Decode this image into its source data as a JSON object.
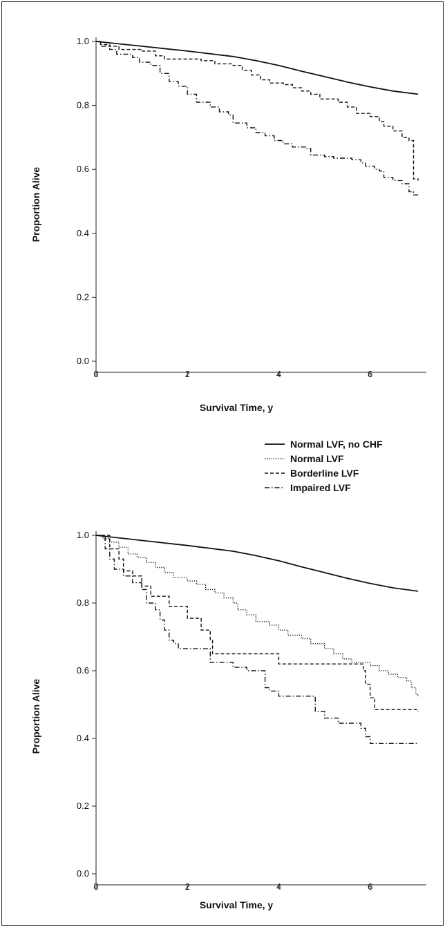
{
  "chart_data": [
    {
      "type": "line",
      "title": "",
      "xlabel": "Survival Time, y",
      "ylabel": "Proportion Alive",
      "xlim": [
        0,
        7.2
      ],
      "ylim": [
        0,
        1.0
      ],
      "x_ticks": [
        "0",
        "2",
        "4",
        "6"
      ],
      "y_ticks": [
        "0.0",
        "0.2",
        "0.4",
        "0.6",
        "0.8",
        "1.0"
      ],
      "grid": false,
      "series": [
        {
          "key": "normal-no-chf",
          "style": "solid",
          "step": false,
          "points": [
            [
              0,
              1.0
            ],
            [
              1,
              0.985
            ],
            [
              2,
              0.97
            ],
            [
              3,
              0.953
            ],
            [
              3.5,
              0.94
            ],
            [
              4,
              0.925
            ],
            [
              4.5,
              0.907
            ],
            [
              5,
              0.89
            ],
            [
              5.5,
              0.873
            ],
            [
              6,
              0.858
            ],
            [
              6.5,
              0.845
            ],
            [
              7.05,
              0.835
            ]
          ]
        },
        {
          "key": "borderline",
          "style": "dashed",
          "step": true,
          "points": [
            [
              0,
              1.0
            ],
            [
              0.1,
              0.99
            ],
            [
              0.3,
              0.985
            ],
            [
              0.5,
              0.975
            ],
            [
              1.0,
              0.97
            ],
            [
              1.3,
              0.955
            ],
            [
              1.5,
              0.945
            ],
            [
              2.3,
              0.94
            ],
            [
              2.6,
              0.93
            ],
            [
              3.0,
              0.925
            ],
            [
              3.2,
              0.91
            ],
            [
              3.4,
              0.895
            ],
            [
              3.6,
              0.88
            ],
            [
              3.8,
              0.87
            ],
            [
              4.1,
              0.865
            ],
            [
              4.3,
              0.855
            ],
            [
              4.5,
              0.845
            ],
            [
              4.7,
              0.835
            ],
            [
              4.9,
              0.82
            ],
            [
              5.3,
              0.81
            ],
            [
              5.5,
              0.795
            ],
            [
              5.7,
              0.775
            ],
            [
              6.0,
              0.765
            ],
            [
              6.2,
              0.75
            ],
            [
              6.3,
              0.735
            ],
            [
              6.5,
              0.72
            ],
            [
              6.7,
              0.7
            ],
            [
              6.85,
              0.69
            ],
            [
              6.95,
              0.57
            ],
            [
              7.05,
              0.565
            ]
          ]
        },
        {
          "key": "impaired",
          "style": "dashdot",
          "step": true,
          "points": [
            [
              0,
              1.0
            ],
            [
              0.1,
              0.985
            ],
            [
              0.3,
              0.975
            ],
            [
              0.45,
              0.96
            ],
            [
              0.8,
              0.95
            ],
            [
              0.95,
              0.935
            ],
            [
              1.2,
              0.925
            ],
            [
              1.4,
              0.9
            ],
            [
              1.6,
              0.875
            ],
            [
              1.8,
              0.86
            ],
            [
              2.0,
              0.835
            ],
            [
              2.2,
              0.81
            ],
            [
              2.5,
              0.795
            ],
            [
              2.7,
              0.78
            ],
            [
              2.9,
              0.77
            ],
            [
              3.0,
              0.745
            ],
            [
              3.3,
              0.73
            ],
            [
              3.5,
              0.715
            ],
            [
              3.7,
              0.705
            ],
            [
              3.9,
              0.69
            ],
            [
              4.1,
              0.68
            ],
            [
              4.3,
              0.67
            ],
            [
              4.6,
              0.665
            ],
            [
              4.7,
              0.645
            ],
            [
              5.0,
              0.64
            ],
            [
              5.2,
              0.635
            ],
            [
              5.6,
              0.63
            ],
            [
              5.8,
              0.62
            ],
            [
              5.9,
              0.61
            ],
            [
              6.1,
              0.6
            ],
            [
              6.2,
              0.595
            ],
            [
              6.3,
              0.575
            ],
            [
              6.5,
              0.565
            ],
            [
              6.7,
              0.555
            ],
            [
              6.85,
              0.53
            ],
            [
              6.95,
              0.52
            ],
            [
              7.05,
              0.52
            ]
          ]
        }
      ]
    },
    {
      "type": "line",
      "title": "",
      "xlabel": "Survival Time, y",
      "ylabel": "Proportion Alive",
      "xlim": [
        0,
        7.2
      ],
      "ylim": [
        0,
        1.0
      ],
      "x_ticks": [
        "0",
        "2",
        "4",
        "6"
      ],
      "y_ticks": [
        "0.0",
        "0.2",
        "0.4",
        "0.6",
        "0.8",
        "1.0"
      ],
      "grid": false,
      "series": [
        {
          "key": "normal-no-chf",
          "style": "solid",
          "step": false,
          "points": [
            [
              0,
              1.0
            ],
            [
              1,
              0.985
            ],
            [
              2,
              0.97
            ],
            [
              3,
              0.953
            ],
            [
              3.5,
              0.94
            ],
            [
              4,
              0.925
            ],
            [
              4.5,
              0.907
            ],
            [
              5,
              0.89
            ],
            [
              5.5,
              0.873
            ],
            [
              6,
              0.858
            ],
            [
              6.5,
              0.845
            ],
            [
              7.05,
              0.835
            ]
          ]
        },
        {
          "key": "normal-lvf",
          "style": "dotted",
          "step": true,
          "points": [
            [
              0,
              1.0
            ],
            [
              0.15,
              0.99
            ],
            [
              0.3,
              0.98
            ],
            [
              0.5,
              0.965
            ],
            [
              0.7,
              0.945
            ],
            [
              0.9,
              0.935
            ],
            [
              1.1,
              0.92
            ],
            [
              1.3,
              0.905
            ],
            [
              1.5,
              0.89
            ],
            [
              1.7,
              0.875
            ],
            [
              2.0,
              0.865
            ],
            [
              2.2,
              0.855
            ],
            [
              2.4,
              0.84
            ],
            [
              2.6,
              0.83
            ],
            [
              2.8,
              0.815
            ],
            [
              3.0,
              0.8
            ],
            [
              3.1,
              0.78
            ],
            [
              3.3,
              0.765
            ],
            [
              3.5,
              0.745
            ],
            [
              3.8,
              0.735
            ],
            [
              4.0,
              0.72
            ],
            [
              4.2,
              0.705
            ],
            [
              4.5,
              0.695
            ],
            [
              4.7,
              0.68
            ],
            [
              5.0,
              0.665
            ],
            [
              5.2,
              0.65
            ],
            [
              5.4,
              0.635
            ],
            [
              5.6,
              0.625
            ],
            [
              6.0,
              0.615
            ],
            [
              6.2,
              0.6
            ],
            [
              6.4,
              0.59
            ],
            [
              6.6,
              0.58
            ],
            [
              6.8,
              0.57
            ],
            [
              6.9,
              0.55
            ],
            [
              7.0,
              0.53
            ],
            [
              7.05,
              0.525
            ]
          ]
        },
        {
          "key": "borderline",
          "style": "dashed",
          "step": true,
          "points": [
            [
              0,
              1.0
            ],
            [
              0.3,
              0.96
            ],
            [
              0.5,
              0.93
            ],
            [
              0.6,
              0.895
            ],
            [
              0.8,
              0.88
            ],
            [
              1.0,
              0.85
            ],
            [
              1.2,
              0.82
            ],
            [
              1.6,
              0.79
            ],
            [
              2.0,
              0.755
            ],
            [
              2.3,
              0.72
            ],
            [
              2.5,
              0.69
            ],
            [
              2.55,
              0.65
            ],
            [
              3.0,
              0.65
            ],
            [
              4.0,
              0.62
            ],
            [
              5.0,
              0.62
            ],
            [
              5.85,
              0.6
            ],
            [
              5.9,
              0.56
            ],
            [
              6.0,
              0.52
            ],
            [
              6.1,
              0.485
            ],
            [
              7.05,
              0.48
            ]
          ]
        },
        {
          "key": "impaired",
          "style": "dashdot",
          "step": true,
          "points": [
            [
              0,
              1.0
            ],
            [
              0.2,
              0.96
            ],
            [
              0.3,
              0.93
            ],
            [
              0.4,
              0.9
            ],
            [
              0.6,
              0.88
            ],
            [
              0.8,
              0.86
            ],
            [
              1.0,
              0.84
            ],
            [
              1.1,
              0.8
            ],
            [
              1.3,
              0.78
            ],
            [
              1.4,
              0.75
            ],
            [
              1.5,
              0.72
            ],
            [
              1.6,
              0.69
            ],
            [
              1.7,
              0.68
            ],
            [
              1.8,
              0.665
            ],
            [
              2.0,
              0.665
            ],
            [
              2.5,
              0.625
            ],
            [
              3.0,
              0.61
            ],
            [
              3.3,
              0.6
            ],
            [
              3.7,
              0.55
            ],
            [
              3.8,
              0.54
            ],
            [
              4.0,
              0.525
            ],
            [
              4.8,
              0.48
            ],
            [
              5.0,
              0.46
            ],
            [
              5.3,
              0.445
            ],
            [
              5.8,
              0.43
            ],
            [
              5.9,
              0.405
            ],
            [
              6.0,
              0.385
            ],
            [
              7.05,
              0.385
            ]
          ]
        }
      ]
    }
  ],
  "legend": {
    "items": [
      {
        "key": "normal-no-chf",
        "label": "Normal LVF, no CHF",
        "style": "solid"
      },
      {
        "key": "normal-lvf",
        "label": "Normal LVF",
        "style": "dotted"
      },
      {
        "key": "borderline",
        "label": "Borderline LVF",
        "style": "dashed"
      },
      {
        "key": "impaired",
        "label": "Impaired LVF",
        "style": "dashdot"
      }
    ]
  },
  "colors": {
    "line": "#111111",
    "axis": "#222222"
  }
}
